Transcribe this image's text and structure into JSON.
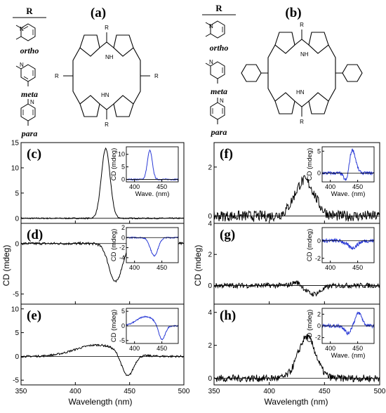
{
  "structures": {
    "r_header": "R",
    "r_groups": [
      "ortho",
      "meta",
      "para"
    ],
    "panel_a": "(a)",
    "panel_b": "(b)",
    "atom_r": "R",
    "atom_nh": "NH",
    "atom_hn": "HN",
    "atom_n": "N"
  },
  "colors": {
    "main": "#000000",
    "inset": "#2b3bd6"
  },
  "chart_data": [
    {
      "id": "c",
      "label": "(c)",
      "type": "line",
      "column": "left",
      "xlim": [
        350,
        500
      ],
      "ylim": [
        -1,
        15
      ],
      "yticks": [
        0,
        5,
        10,
        15
      ],
      "signal": [
        {
          "mu": 428,
          "sigma": 4,
          "amp": 13.8
        }
      ],
      "noise": 0.12,
      "inset": {
        "xlabel": "Wave. (nm)",
        "ylabel": "CD (mdeg)",
        "xlim": [
          385,
          480
        ],
        "ylim": [
          -1,
          13
        ],
        "yticks": [
          0,
          5,
          10
        ],
        "xticks": [
          400,
          450
        ],
        "signal": [
          {
            "mu": 428,
            "sigma": 4.5,
            "amp": 11.5
          }
        ],
        "noise": 0.25
      }
    },
    {
      "id": "d",
      "label": "(d)",
      "type": "line",
      "column": "left",
      "xlim": [
        350,
        500
      ],
      "ylim": [
        -6,
        2
      ],
      "yticks": [
        -5,
        0
      ],
      "signal": [
        {
          "mu": 437,
          "sigma": 6,
          "amp": -3.8
        }
      ],
      "noise": 0.12,
      "inset": {
        "xlabel": "",
        "ylabel": "CD (mdeg)",
        "xlim": [
          385,
          480
        ],
        "ylim": [
          -5,
          2
        ],
        "yticks": [
          -4,
          -2,
          0,
          2
        ],
        "xticks": [
          400,
          450
        ],
        "signal": [
          {
            "mu": 436,
            "sigma": 7,
            "amp": -3.6
          }
        ],
        "noise": 0.12
      }
    },
    {
      "id": "e",
      "label": "(e)",
      "type": "line",
      "column": "left",
      "xlim": [
        350,
        500
      ],
      "ylim": [
        -6,
        11
      ],
      "yticks": [
        -5,
        0,
        5,
        10
      ],
      "signal": [
        {
          "mu": 420,
          "sigma": 20,
          "amp": 2.4
        },
        {
          "mu": 448,
          "sigma": 5.5,
          "amp": -5.0
        }
      ],
      "noise": 0.2,
      "inset": {
        "xlabel": "",
        "ylabel": "CD (mdeg)",
        "xlim": [
          385,
          480
        ],
        "ylim": [
          -6,
          6
        ],
        "yticks": [
          -5,
          0,
          5
        ],
        "xticks": [
          400,
          450
        ],
        "signal": [
          {
            "mu": 420,
            "sigma": 16,
            "amp": 3.2
          },
          {
            "mu": 450,
            "sigma": 6,
            "amp": -5.2
          }
        ],
        "noise": 0.2
      }
    },
    {
      "id": "f",
      "label": "(f)",
      "type": "line",
      "column": "right",
      "xlim": [
        350,
        500
      ],
      "ylim": [
        -0.3,
        3
      ],
      "yticks": [
        0,
        2
      ],
      "signal": [
        {
          "mu": 432,
          "sigma": 9,
          "amp": 1.45
        }
      ],
      "noise": 0.22,
      "inset": {
        "xlabel": "Wave. (nm)",
        "ylabel": "CD (mdeg)",
        "xlim": [
          385,
          480
        ],
        "ylim": [
          -2,
          6
        ],
        "yticks": [
          0,
          5
        ],
        "xticks": [
          400,
          450
        ],
        "signal": [
          {
            "mu": 430,
            "sigma": 4.5,
            "amp": -2.6
          },
          {
            "mu": 440,
            "sigma": 6,
            "amp": 5.5
          }
        ],
        "noise": 0.35
      }
    },
    {
      "id": "g",
      "label": "(g)",
      "type": "line",
      "column": "right",
      "xlim": [
        350,
        500
      ],
      "ylim": [
        -1.2,
        4
      ],
      "yticks": [
        0,
        2,
        4
      ],
      "signal": [
        {
          "mu": 425,
          "sigma": 4,
          "amp": 0.25
        },
        {
          "mu": 440,
          "sigma": 7,
          "amp": -0.55
        }
      ],
      "noise": 0.16,
      "inset": {
        "xlabel": "",
        "ylabel": "CD (mdeg)",
        "xlim": [
          385,
          480
        ],
        "ylim": [
          -2.5,
          1.5
        ],
        "yticks": [
          -2,
          0
        ],
        "xticks": [
          400,
          450
        ],
        "signal": [
          {
            "mu": 440,
            "sigma": 9,
            "amp": -0.8
          }
        ],
        "noise": 0.22
      }
    },
    {
      "id": "h",
      "label": "(h)",
      "type": "line",
      "column": "right",
      "xlim": [
        350,
        500
      ],
      "ylim": [
        -0.4,
        4.5
      ],
      "yticks": [
        0,
        2,
        4
      ],
      "signal": [
        {
          "mu": 434,
          "sigma": 8,
          "amp": 2.5
        }
      ],
      "noise": 0.22,
      "inset": {
        "xlabel": "Wave. (nm)",
        "ylabel": "CD (mdeg)",
        "xlim": [
          385,
          480
        ],
        "ylim": [
          -3,
          3
        ],
        "yticks": [
          -2,
          0,
          2
        ],
        "xticks": [
          400,
          450
        ],
        "signal": [
          {
            "mu": 432,
            "sigma": 5,
            "amp": -1.3
          },
          {
            "mu": 452,
            "sigma": 6,
            "amp": 2.2
          }
        ],
        "noise": 0.3
      }
    }
  ],
  "axes": {
    "xlabel": "Wavelength (nm)",
    "ylabel": "CD (mdeg)",
    "xticks": [
      350,
      400,
      450,
      500
    ]
  }
}
